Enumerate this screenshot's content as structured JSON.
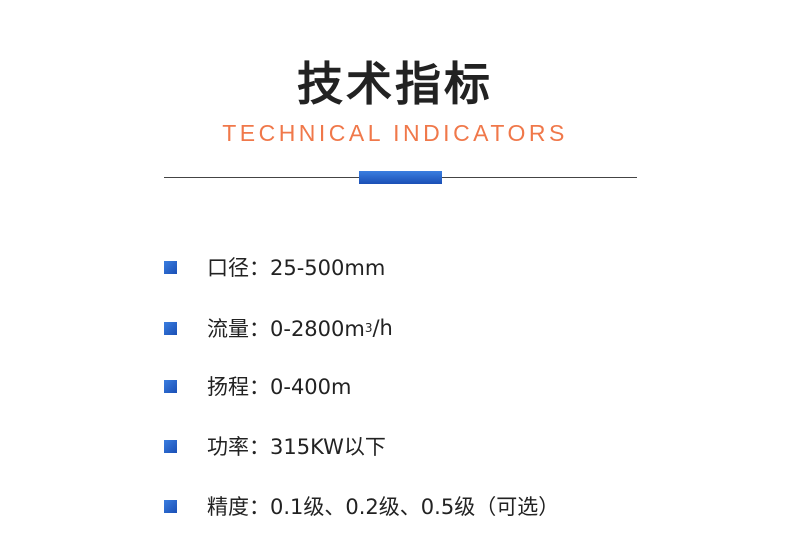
{
  "header": {
    "title": "技术指标",
    "subtitle": "TECHNICAL INDICATORS"
  },
  "accent_color": "#1f5cc4",
  "subtitle_color": "#f0784a",
  "items": [
    {
      "label": "口径：25-500mm"
    },
    {
      "label": "流量：0-2800m",
      "sup": "3",
      "suffix": "/h"
    },
    {
      "label": "扬程：0-400m"
    },
    {
      "label": "功率：315KW以下"
    },
    {
      "label": "精度：0.1级、0.2级、0.5级（可选）"
    }
  ]
}
